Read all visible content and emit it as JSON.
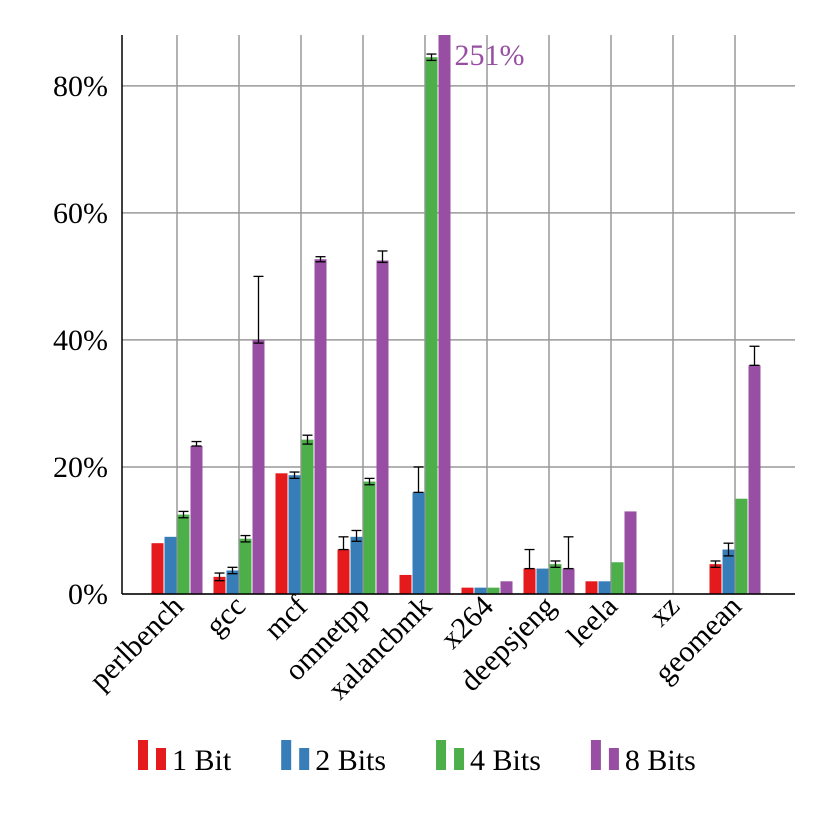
{
  "chart_data": {
    "type": "bar",
    "categories": [
      "perlbench",
      "gcc",
      "mcf",
      "omnetpp",
      "xalancbmk",
      "x264",
      "deepsjeng",
      "leela",
      "xz",
      "geomean"
    ],
    "series": [
      {
        "name": "1 Bit",
        "color": "#e41a1c",
        "values": [
          8,
          2.7,
          19,
          7,
          3,
          1,
          4,
          2,
          0,
          4.7
        ],
        "errors": [
          null,
          [
            0.6,
            0.6
          ],
          null,
          [
            0,
            2
          ],
          null,
          null,
          [
            0,
            3
          ],
          null,
          null,
          [
            0.5,
            0.5
          ]
        ]
      },
      {
        "name": "2 Bits",
        "color": "#377eb8",
        "values": [
          9,
          3.7,
          18.7,
          9,
          16,
          1,
          4,
          2,
          0,
          7
        ],
        "errors": [
          null,
          [
            0.5,
            0.5
          ],
          [
            0.5,
            0.5
          ],
          [
            0.7,
            1
          ],
          [
            0,
            4
          ],
          null,
          null,
          null,
          null,
          [
            1,
            1
          ]
        ]
      },
      {
        "name": "4 Bits",
        "color": "#4daf4a",
        "values": [
          12.5,
          8.7,
          24.3,
          17.7,
          84.5,
          1,
          4.7,
          5,
          0,
          15
        ],
        "errors": [
          [
            0.5,
            0.5
          ],
          [
            0.5,
            0.5
          ],
          [
            0.7,
            0.7
          ],
          [
            0.5,
            0.5
          ],
          [
            0.5,
            0.5
          ],
          null,
          [
            0.5,
            0.5
          ],
          null,
          null,
          null
        ]
      },
      {
        "name": "8 Bits",
        "color": "#984ea3",
        "values": [
          23.3,
          40,
          52.7,
          52.5,
          251,
          2,
          4,
          13,
          0,
          36
        ],
        "errors": [
          [
            0,
            0.7
          ],
          [
            0.5,
            10
          ],
          [
            0.4,
            0.4
          ],
          [
            0.3,
            1.5
          ],
          null,
          null,
          [
            0,
            5
          ],
          null,
          null,
          [
            0,
            3
          ]
        ],
        "value_labels": [
          null,
          null,
          null,
          null,
          "251%",
          null,
          null,
          null,
          null,
          null
        ]
      }
    ],
    "ylim": [
      0,
      88
    ],
    "yticks": [
      {
        "value": 0,
        "label": "0%"
      },
      {
        "value": 20,
        "label": "20%"
      },
      {
        "value": 40,
        "label": "40%"
      },
      {
        "value": 60,
        "label": "60%"
      },
      {
        "value": 80,
        "label": "80%"
      }
    ],
    "grid": true,
    "legend": "bottom"
  }
}
